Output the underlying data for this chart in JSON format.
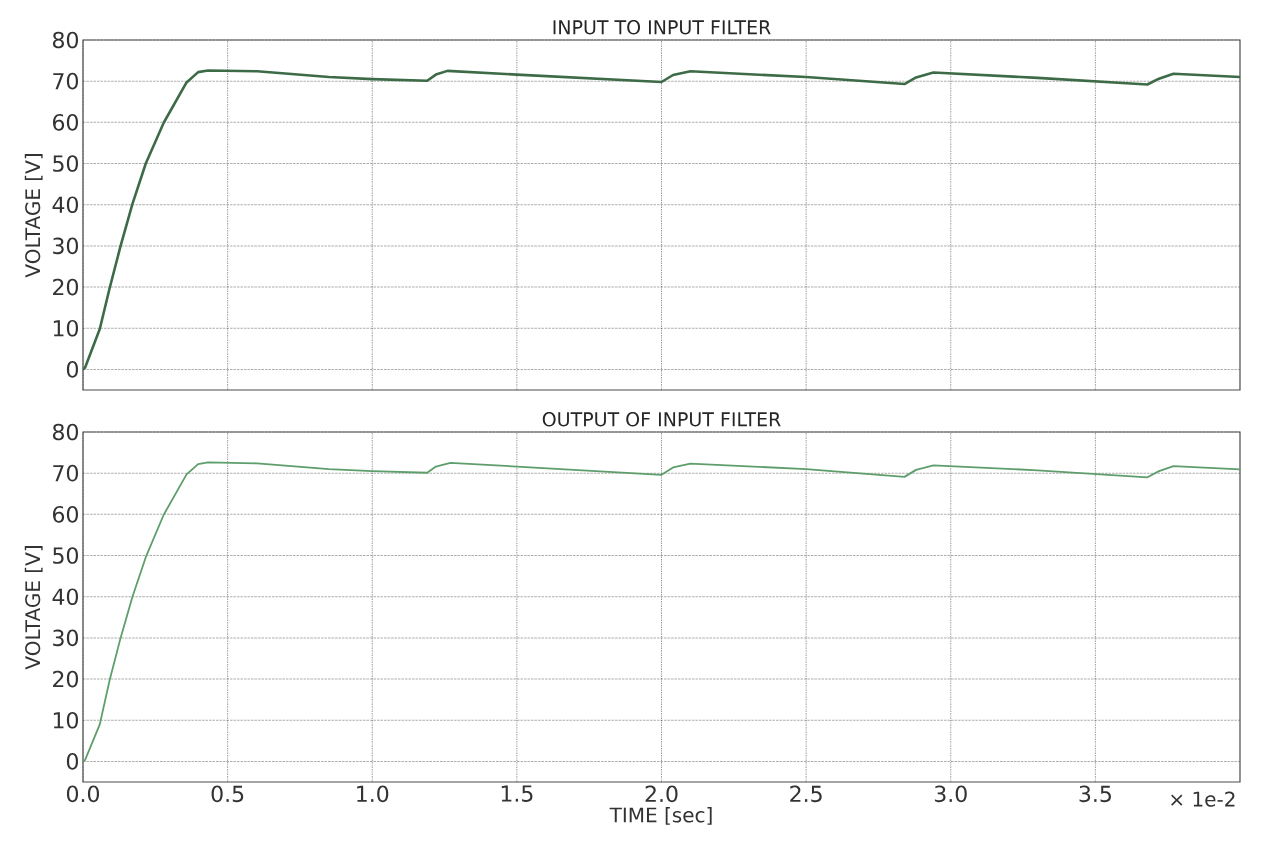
{
  "chart_data": [
    {
      "type": "line",
      "title": "INPUT TO INPUT FILTER",
      "ylabel": "VOLTAGE [V]",
      "xlim": [
        0,
        4
      ],
      "ylim": [
        -5,
        80
      ],
      "xticks": [
        0,
        0.5,
        1,
        1.5,
        2,
        2.5,
        3,
        3.5
      ],
      "yticks": [
        0,
        10,
        20,
        30,
        40,
        50,
        60,
        70,
        80
      ],
      "grid": true,
      "tick_labels": "y",
      "x": [
        0,
        0.007,
        0.058,
        0.092,
        0.13,
        0.171,
        0.217,
        0.279,
        0.358,
        0.398,
        0.432,
        0.602,
        0.85,
        1.0,
        1.19,
        1.22,
        1.26,
        1.5,
        2.0,
        2.04,
        2.1,
        2.5,
        2.84,
        2.88,
        2.94,
        3.3,
        3.68,
        3.72,
        3.77,
        4.0
      ],
      "series": [
        {
          "color": "#3d6b47",
          "values": [
            0,
            0.4,
            9.8,
            19.7,
            30,
            40.2,
            50,
            59.9,
            69.7,
            72.2,
            72.6,
            72.4,
            71,
            70.5,
            70.1,
            71.6,
            72.5,
            71.6,
            69.8,
            71.5,
            72.4,
            71,
            69.3,
            70.9,
            72.1,
            70.8,
            69.2,
            70.6,
            71.8,
            71.0
          ]
        }
      ]
    },
    {
      "type": "line",
      "title": "OUTPUT OF INPUT FILTER",
      "xlabel": "TIME [sec]",
      "ylabel": "VOLTAGE [V]",
      "xlim": [
        0,
        4
      ],
      "ylim": [
        -5,
        80
      ],
      "xticks": [
        {
          "value": 0,
          "label": "0.0"
        },
        {
          "value": 0.5,
          "label": "0.5"
        },
        {
          "value": 1,
          "label": "1.0"
        },
        {
          "value": 1.5,
          "label": "1.5"
        },
        {
          "value": 2,
          "label": "2.0"
        },
        {
          "value": 2.5,
          "label": "2.5"
        },
        {
          "value": 3,
          "label": "3.0"
        },
        {
          "value": 3.5,
          "label": "3.5"
        }
      ],
      "yticks": [
        0,
        10,
        20,
        30,
        40,
        50,
        60,
        70,
        80
      ],
      "grid": true,
      "annotations": [
        "× 1e-2"
      ],
      "x": [
        0,
        0.007,
        0.058,
        0.092,
        0.13,
        0.171,
        0.217,
        0.279,
        0.358,
        0.398,
        0.432,
        0.602,
        0.85,
        1.0,
        1.19,
        1.22,
        1.27,
        1.5,
        2.0,
        2.04,
        2.1,
        2.5,
        2.84,
        2.88,
        2.94,
        3.3,
        3.68,
        3.72,
        3.77,
        4.0
      ],
      "series": [
        {
          "color": "#5e9e6c",
          "values": [
            0,
            0.3,
            9.0,
            19.7,
            30,
            40,
            49.6,
            59.9,
            69.7,
            72.2,
            72.6,
            72.4,
            71,
            70.5,
            70.1,
            71.6,
            72.5,
            71.6,
            69.6,
            71.4,
            72.3,
            71,
            69.1,
            70.8,
            71.9,
            70.7,
            69.0,
            70.5,
            71.7,
            70.9
          ]
        }
      ]
    }
  ]
}
